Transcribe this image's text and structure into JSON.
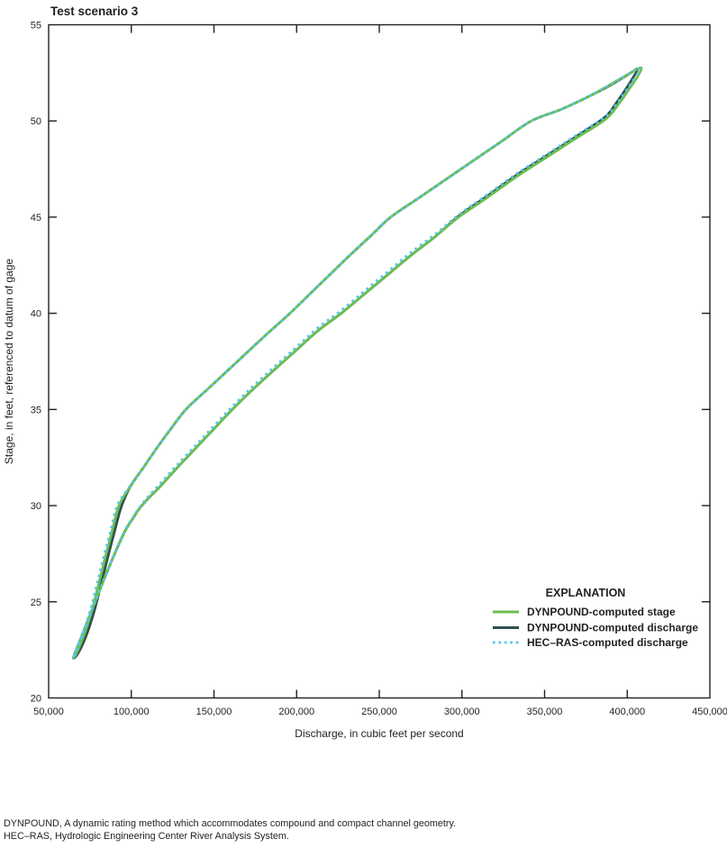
{
  "chart_data": {
    "type": "line",
    "title": "Test scenario 3",
    "xlabel": "Discharge, in cubic feet per second",
    "ylabel": "Stage, in feet, referenced to datum of gage",
    "xlim": [
      50000,
      450000
    ],
    "ylim": [
      20,
      55
    ],
    "grid": false,
    "axis_color": "#231f20",
    "legend_title": "EXPLANATION",
    "legend_position": "inside lower right",
    "x_ticks": [
      {
        "value": 50000,
        "label": "50,000"
      },
      {
        "value": 100000,
        "label": "100,000"
      },
      {
        "value": 150000,
        "label": "150,000"
      },
      {
        "value": 200000,
        "label": "200,000"
      },
      {
        "value": 250000,
        "label": "250,000"
      },
      {
        "value": 300000,
        "label": "300,000"
      },
      {
        "value": 350000,
        "label": "350,000"
      },
      {
        "value": 400000,
        "label": "400,000"
      },
      {
        "value": 450000,
        "label": "450,000"
      }
    ],
    "y_ticks": [
      {
        "value": 20,
        "label": "20"
      },
      {
        "value": 25,
        "label": "25"
      },
      {
        "value": 30,
        "label": "30"
      },
      {
        "value": 35,
        "label": "35"
      },
      {
        "value": 40,
        "label": "40"
      },
      {
        "value": 45,
        "label": "45"
      },
      {
        "value": 50,
        "label": "50"
      },
      {
        "value": 55,
        "label": "55"
      }
    ],
    "series": [
      {
        "name": "DYNPOUND-computed stage",
        "color": "#6abe4b",
        "style": "solid",
        "closed": true,
        "points": [
          [
            65000,
            22.1
          ],
          [
            69000,
            23.0
          ],
          [
            74000,
            24.1
          ],
          [
            80000,
            25.4
          ],
          [
            86000,
            26.7
          ],
          [
            92000,
            27.9
          ],
          [
            97000,
            28.8
          ],
          [
            101500,
            29.4
          ],
          [
            104500,
            29.8
          ],
          [
            110000,
            30.35
          ],
          [
            117000,
            30.95
          ],
          [
            127000,
            31.9
          ],
          [
            138000,
            32.9
          ],
          [
            149000,
            33.9
          ],
          [
            160000,
            34.9
          ],
          [
            173000,
            36.0
          ],
          [
            187000,
            37.1
          ],
          [
            200000,
            38.1
          ],
          [
            213000,
            39.1
          ],
          [
            227000,
            40.0
          ],
          [
            241000,
            41.0
          ],
          [
            255000,
            42.0
          ],
          [
            269000,
            43.0
          ],
          [
            284000,
            44.0
          ],
          [
            298000,
            45.0
          ],
          [
            315000,
            46.0
          ],
          [
            333000,
            47.1
          ],
          [
            351000,
            48.1
          ],
          [
            369000,
            49.1
          ],
          [
            387000,
            50.1
          ],
          [
            395000,
            50.9
          ],
          [
            401500,
            51.7
          ],
          [
            406500,
            52.35
          ],
          [
            408500,
            52.75
          ],
          [
            405000,
            52.65
          ],
          [
            398000,
            52.3
          ],
          [
            388000,
            51.8
          ],
          [
            375000,
            51.2
          ],
          [
            360000,
            50.6
          ],
          [
            342000,
            50.0
          ],
          [
            325000,
            49.0
          ],
          [
            308000,
            48.0
          ],
          [
            291000,
            47.0
          ],
          [
            274000,
            46.0
          ],
          [
            257000,
            45.0
          ],
          [
            244500,
            44.0
          ],
          [
            232000,
            43.0
          ],
          [
            220000,
            42.0
          ],
          [
            208000,
            41.0
          ],
          [
            196000,
            40.0
          ],
          [
            183000,
            39.0
          ],
          [
            170500,
            38.0
          ],
          [
            158000,
            37.0
          ],
          [
            145500,
            36.0
          ],
          [
            133000,
            35.0
          ],
          [
            124000,
            34.0
          ],
          [
            115500,
            33.0
          ],
          [
            107500,
            32.0
          ],
          [
            99500,
            31.0
          ],
          [
            92500,
            30.0
          ],
          [
            88500,
            28.7
          ],
          [
            84500,
            27.4
          ],
          [
            80500,
            26.0
          ],
          [
            76000,
            24.5
          ],
          [
            71500,
            23.3
          ],
          [
            67000,
            22.35
          ]
        ]
      },
      {
        "name": "DYNPOUND-computed discharge",
        "color": "#2f504e",
        "style": "solid",
        "closed": true,
        "points": [
          [
            65000,
            22.1
          ],
          [
            69000,
            23.0
          ],
          [
            74000,
            24.1
          ],
          [
            80000,
            25.4
          ],
          [
            86000,
            26.7
          ],
          [
            92000,
            27.9
          ],
          [
            97000,
            28.8
          ],
          [
            101500,
            29.4
          ],
          [
            104500,
            29.8
          ],
          [
            110000,
            30.35
          ],
          [
            117000,
            30.95
          ],
          [
            127000,
            31.9
          ],
          [
            138000,
            32.9
          ],
          [
            149000,
            33.9
          ],
          [
            160000,
            34.9
          ],
          [
            173000,
            36.0
          ],
          [
            187000,
            37.1
          ],
          [
            200000,
            38.1
          ],
          [
            213000,
            39.1
          ],
          [
            227000,
            40.0
          ],
          [
            241000,
            41.0
          ],
          [
            255000,
            42.0
          ],
          [
            269000,
            43.0
          ],
          [
            284000,
            44.0
          ],
          [
            298000,
            45.05
          ],
          [
            315000,
            46.08
          ],
          [
            333000,
            47.18
          ],
          [
            351000,
            48.18
          ],
          [
            369000,
            49.18
          ],
          [
            386500,
            50.2
          ],
          [
            393500,
            50.95
          ],
          [
            399500,
            51.7
          ],
          [
            404000,
            52.32
          ],
          [
            406300,
            52.7
          ],
          [
            403000,
            52.55
          ],
          [
            396500,
            52.2
          ],
          [
            387500,
            51.75
          ],
          [
            375000,
            51.2
          ],
          [
            360000,
            50.6
          ],
          [
            342000,
            50.0
          ],
          [
            325000,
            49.0
          ],
          [
            308000,
            48.0
          ],
          [
            291000,
            47.0
          ],
          [
            274000,
            46.0
          ],
          [
            257000,
            45.0
          ],
          [
            244500,
            44.0
          ],
          [
            232000,
            43.0
          ],
          [
            220000,
            42.0
          ],
          [
            208000,
            41.0
          ],
          [
            196000,
            40.0
          ],
          [
            183000,
            39.0
          ],
          [
            170500,
            38.0
          ],
          [
            158000,
            37.0
          ],
          [
            145500,
            36.0
          ],
          [
            133000,
            35.0
          ],
          [
            124000,
            34.0
          ],
          [
            115500,
            33.0
          ],
          [
            107500,
            32.0
          ],
          [
            99500,
            31.0
          ],
          [
            94000,
            29.95
          ],
          [
            90000,
            28.7
          ],
          [
            86000,
            27.4
          ],
          [
            82000,
            26.0
          ],
          [
            77500,
            24.5
          ],
          [
            73000,
            23.3
          ],
          [
            68000,
            22.35
          ]
        ]
      },
      {
        "name": "HEC–RAS-computed discharge",
        "color": "#58c5eb",
        "style": "dotted",
        "closed": true,
        "points": [
          [
            65000,
            22.12
          ],
          [
            69000,
            23.0
          ],
          [
            74000,
            24.1
          ],
          [
            80000,
            25.4
          ],
          [
            86000,
            26.7
          ],
          [
            92000,
            27.95
          ],
          [
            97000,
            28.85
          ],
          [
            101500,
            29.45
          ],
          [
            104500,
            29.85
          ],
          [
            110000,
            30.45
          ],
          [
            117000,
            31.1
          ],
          [
            127000,
            32.05
          ],
          [
            138000,
            33.05
          ],
          [
            149000,
            34.05
          ],
          [
            160000,
            35.05
          ],
          [
            173000,
            36.15
          ],
          [
            187000,
            37.25
          ],
          [
            200000,
            38.25
          ],
          [
            213000,
            39.25
          ],
          [
            227000,
            40.15
          ],
          [
            241000,
            41.15
          ],
          [
            255000,
            42.15
          ],
          [
            269000,
            43.15
          ],
          [
            284000,
            44.12
          ],
          [
            298000,
            45.12
          ],
          [
            315000,
            46.15
          ],
          [
            333000,
            47.25
          ],
          [
            351000,
            48.25
          ],
          [
            369000,
            49.25
          ],
          [
            387000,
            50.25
          ],
          [
            394500,
            51.0
          ],
          [
            400500,
            51.72
          ],
          [
            405500,
            52.35
          ],
          [
            407500,
            52.72
          ],
          [
            404000,
            52.6
          ],
          [
            397000,
            52.25
          ],
          [
            387500,
            51.78
          ],
          [
            375000,
            51.2
          ],
          [
            360000,
            50.6
          ],
          [
            342000,
            50.0
          ],
          [
            325000,
            49.0
          ],
          [
            308000,
            48.0
          ],
          [
            291000,
            47.0
          ],
          [
            274000,
            46.0
          ],
          [
            257000,
            45.0
          ],
          [
            244500,
            44.0
          ],
          [
            232000,
            43.0
          ],
          [
            220000,
            42.0
          ],
          [
            208000,
            41.0
          ],
          [
            196000,
            40.0
          ],
          [
            183000,
            39.0
          ],
          [
            170500,
            38.0
          ],
          [
            158000,
            37.0
          ],
          [
            145500,
            36.0
          ],
          [
            133000,
            35.0
          ],
          [
            124000,
            34.0
          ],
          [
            115500,
            33.0
          ],
          [
            107500,
            32.0
          ],
          [
            99500,
            31.05
          ],
          [
            91500,
            30.0
          ],
          [
            87500,
            28.7
          ],
          [
            83500,
            27.4
          ],
          [
            79500,
            26.0
          ],
          [
            75000,
            24.5
          ],
          [
            70500,
            23.3
          ],
          [
            66000,
            22.3
          ]
        ]
      }
    ]
  },
  "footnotes": [
    "DYNPOUND, A dynamic rating method which accommodates compound and compact channel geometry.",
    "HEC–RAS, Hydrologic Engineering Center River Analysis System."
  ]
}
